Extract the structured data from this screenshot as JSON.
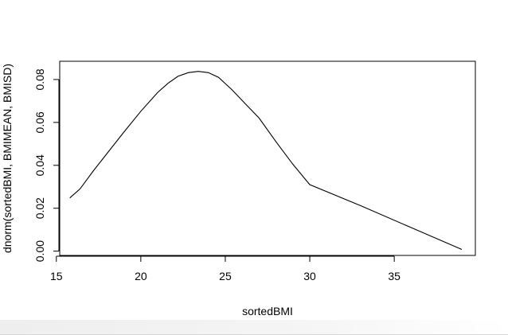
{
  "chart_data": {
    "type": "line",
    "title": "",
    "xlabel": "sortedBMI",
    "ylabel": "dnorm(sortedBMI, BMIMEAN, BMISD)",
    "xlim": [
      15.2,
      39.8
    ],
    "ylim": [
      -0.002,
      0.0885
    ],
    "x_ticks": [
      15,
      20,
      25,
      30,
      35
    ],
    "x_tick_labels": [
      "15",
      "20",
      "25",
      "30",
      "35"
    ],
    "y_ticks": [
      0.0,
      0.02,
      0.04,
      0.06,
      0.08
    ],
    "y_tick_labels": [
      "0.00",
      "0.02",
      "0.04",
      "0.06",
      "0.08"
    ],
    "grid": false,
    "legend": "none",
    "line_color": "#000000",
    "series": [
      {
        "x": [
          15.8,
          16.4,
          17.2,
          18.0,
          19.0,
          20.0,
          21.0,
          21.6,
          22.2,
          22.8,
          23.4,
          24.0,
          24.6,
          25.4,
          26.2,
          27.0,
          28.0,
          29.0,
          30.0,
          33.0,
          36.0,
          39.0
        ],
        "y": [
          0.0248,
          0.029,
          0.0375,
          0.0455,
          0.0555,
          0.0652,
          0.074,
          0.0782,
          0.0815,
          0.0832,
          0.0838,
          0.0832,
          0.081,
          0.0752,
          0.0686,
          0.062,
          0.051,
          0.0405,
          0.031,
          0.0212,
          0.011,
          0.0008
        ]
      }
    ]
  }
}
